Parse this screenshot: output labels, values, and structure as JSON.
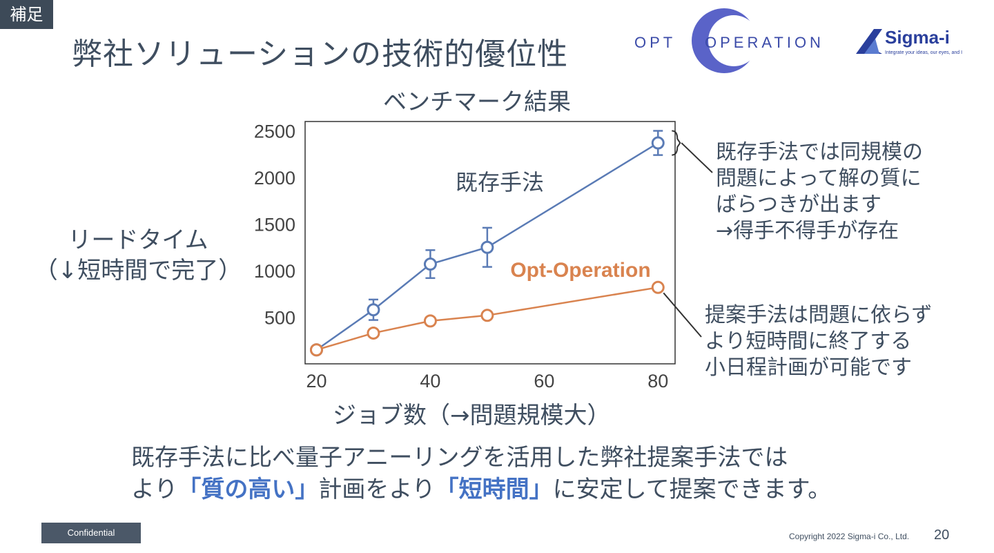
{
  "tag": "補足",
  "title": "弊社ソリューションの技術的優位性",
  "logos": {
    "opt_left": "OPT",
    "opt_right": "OPERATION",
    "sigma_name": "Sigma-i",
    "sigma_tagline": "Integrate your ideas, our eyes, and I"
  },
  "chart_data": {
    "type": "line",
    "title": "ベンチマーク結果",
    "xlabel": "ジョブ数（→問題規模大）",
    "ylabel_line1": "リードタイム",
    "ylabel_line2": "（↓短時間で完了）",
    "x": [
      20,
      30,
      40,
      50,
      80
    ],
    "xticks": [
      20,
      40,
      60,
      80
    ],
    "yticks": [
      500,
      1000,
      1500,
      2000,
      2500
    ],
    "xlim": [
      18,
      83
    ],
    "ylim": [
      0,
      2600
    ],
    "grid": false,
    "series": [
      {
        "name": "既存手法",
        "color": "#5a7bb5",
        "values": [
          150,
          580,
          1070,
          1250,
          2370
        ],
        "errors": [
          0,
          110,
          150,
          210,
          130
        ]
      },
      {
        "name": "Opt-Operation",
        "color": "#d9834f",
        "values": [
          150,
          330,
          460,
          520,
          820
        ],
        "errors": [
          0,
          0,
          0,
          0,
          0
        ]
      }
    ]
  },
  "notes": {
    "existing": [
      "既存手法では同規模の",
      "問題によって解の質に",
      "ばらつきが出ます",
      "→得手不得手が存在"
    ],
    "proposed": [
      "提案手法は問題に依らず",
      "より短時間に終了する",
      "小日程計画が可能です"
    ]
  },
  "summary": {
    "line1": "既存手法に比べ量子アニーリングを活用した弊社提案手法では",
    "line2_a": "より",
    "line2_b": "「質の高い」",
    "line2_c": "計画をより",
    "line2_d": "「短時間」",
    "line2_e": "に安定して提案できます。"
  },
  "footer": {
    "confidential": "Confidential",
    "copyright": "Copyright  2022 Sigma-i Co., Ltd.",
    "page": "20"
  }
}
